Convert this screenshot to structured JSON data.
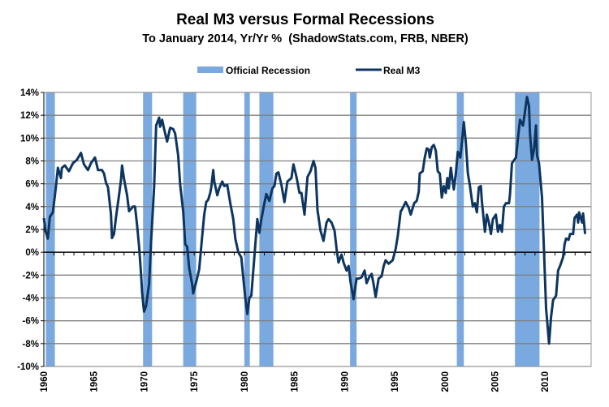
{
  "chart_data": {
    "type": "line",
    "title": "Real M3 versus Formal Recessions",
    "subtitle": "To January 2014, Yr/Yr %  (ShadowStats.com, FRB, NBER)",
    "xlabel": "",
    "ylabel": "",
    "xlim": [
      1960,
      2014.6
    ],
    "ylim": [
      -10,
      14
    ],
    "grid": true,
    "legend_position": "top-center",
    "legend": [
      "Official Recession",
      "Real M3"
    ],
    "y_ticks": [
      14,
      12,
      10,
      8,
      6,
      4,
      2,
      0,
      -2,
      -4,
      -6,
      -8,
      -10
    ],
    "y_tick_labels": [
      "14%",
      "12%",
      "10%",
      "8%",
      "6%",
      "4%",
      "2%",
      "0%",
      "-2%",
      "-4%",
      "-6%",
      "-8%",
      "-10%"
    ],
    "x_ticks": [
      1960,
      1965,
      1970,
      1975,
      1980,
      1985,
      1990,
      1995,
      2000,
      2005,
      2010
    ],
    "x_tick_labels": [
      "1960",
      "1965",
      "1970",
      "1975",
      "1980",
      "1985",
      "1990",
      "1995",
      "2000",
      "2005",
      "2010"
    ],
    "colors": {
      "recession": "#7aa9e0",
      "line": "#0d3560",
      "grid": "#808080"
    },
    "recessions": [
      [
        1960.2,
        1961.1
      ],
      [
        1969.9,
        1970.8
      ],
      [
        1973.9,
        1975.2
      ],
      [
        1980.0,
        1980.55
      ],
      [
        1981.5,
        1982.9
      ],
      [
        1990.55,
        1991.2
      ],
      [
        2001.2,
        2001.9
      ],
      [
        2007.0,
        2009.45
      ]
    ],
    "series": [
      {
        "name": "Real M3",
        "points": [
          [
            1960.0,
            3.0
          ],
          [
            1960.16,
            1.9
          ],
          [
            1960.4,
            1.2
          ],
          [
            1960.6,
            3.1
          ],
          [
            1960.9,
            3.5
          ],
          [
            1961.2,
            5.7
          ],
          [
            1961.4,
            7.4
          ],
          [
            1961.7,
            6.5
          ],
          [
            1961.8,
            7.4
          ],
          [
            1962.1,
            7.6
          ],
          [
            1962.5,
            7.1
          ],
          [
            1962.9,
            7.8
          ],
          [
            1963.3,
            8.1
          ],
          [
            1963.7,
            8.7
          ],
          [
            1964.0,
            7.7
          ],
          [
            1964.4,
            7.2
          ],
          [
            1964.7,
            7.8
          ],
          [
            1965.1,
            8.3
          ],
          [
            1965.4,
            7.2
          ],
          [
            1965.8,
            7.2
          ],
          [
            1966.0,
            6.9
          ],
          [
            1966.2,
            6.1
          ],
          [
            1966.4,
            5.7
          ],
          [
            1966.7,
            3.3
          ],
          [
            1966.8,
            1.25
          ],
          [
            1967.0,
            1.6
          ],
          [
            1967.2,
            3.1
          ],
          [
            1967.5,
            5.0
          ],
          [
            1967.7,
            6.4
          ],
          [
            1967.8,
            7.6
          ],
          [
            1968.0,
            6.4
          ],
          [
            1968.3,
            5.0
          ],
          [
            1968.5,
            3.6
          ],
          [
            1968.9,
            4.0
          ],
          [
            1969.1,
            4.0
          ],
          [
            1969.3,
            2.4
          ],
          [
            1969.5,
            0.5
          ],
          [
            1969.7,
            -1.9
          ],
          [
            1969.8,
            -3.5
          ],
          [
            1970.0,
            -5.2
          ],
          [
            1970.2,
            -4.7
          ],
          [
            1970.5,
            -2.8
          ],
          [
            1970.7,
            1.0
          ],
          [
            1971.0,
            5.7
          ],
          [
            1971.2,
            11.1
          ],
          [
            1971.5,
            11.8
          ],
          [
            1971.6,
            11.0
          ],
          [
            1971.8,
            11.6
          ],
          [
            1972.0,
            10.8
          ],
          [
            1972.3,
            9.7
          ],
          [
            1972.6,
            10.9
          ],
          [
            1972.9,
            10.8
          ],
          [
            1973.1,
            10.4
          ],
          [
            1973.4,
            8.5
          ],
          [
            1973.6,
            5.9
          ],
          [
            1973.9,
            3.6
          ],
          [
            1974.1,
            0.7
          ],
          [
            1974.3,
            0.5
          ],
          [
            1974.5,
            -1.4
          ],
          [
            1974.8,
            -2.8
          ],
          [
            1974.9,
            -3.6
          ],
          [
            1975.2,
            -2.6
          ],
          [
            1975.5,
            -1.5
          ],
          [
            1975.8,
            1.4
          ],
          [
            1976.0,
            3.3
          ],
          [
            1976.2,
            4.4
          ],
          [
            1976.4,
            4.6
          ],
          [
            1976.6,
            5.2
          ],
          [
            1976.7,
            5.7
          ],
          [
            1976.9,
            7.2
          ],
          [
            1977.0,
            6.2
          ],
          [
            1977.3,
            5.0
          ],
          [
            1977.5,
            5.6
          ],
          [
            1977.8,
            6.2
          ],
          [
            1978.0,
            5.8
          ],
          [
            1978.3,
            5.9
          ],
          [
            1978.6,
            4.3
          ],
          [
            1978.9,
            2.9
          ],
          [
            1979.1,
            1.2
          ],
          [
            1979.4,
            0.0
          ],
          [
            1979.7,
            -0.45
          ],
          [
            1979.9,
            -2.3
          ],
          [
            1980.1,
            -4.0
          ],
          [
            1980.3,
            -5.4
          ],
          [
            1980.5,
            -4.0
          ],
          [
            1980.7,
            -3.8
          ],
          [
            1981.0,
            -0.45
          ],
          [
            1981.3,
            2.9
          ],
          [
            1981.5,
            1.7
          ],
          [
            1981.7,
            2.9
          ],
          [
            1982.0,
            4.3
          ],
          [
            1982.2,
            5.1
          ],
          [
            1982.5,
            4.5
          ],
          [
            1982.8,
            5.6
          ],
          [
            1983.0,
            5.8
          ],
          [
            1983.2,
            6.9
          ],
          [
            1983.4,
            7.0
          ],
          [
            1983.7,
            5.9
          ],
          [
            1984.0,
            4.4
          ],
          [
            1984.3,
            6.2
          ],
          [
            1984.7,
            6.5
          ],
          [
            1984.9,
            7.7
          ],
          [
            1985.2,
            6.6
          ],
          [
            1985.5,
            5.2
          ],
          [
            1985.7,
            5.2
          ],
          [
            1986.0,
            3.3
          ],
          [
            1986.3,
            6.6
          ],
          [
            1986.6,
            7.1
          ],
          [
            1986.9,
            8.0
          ],
          [
            1987.1,
            7.4
          ],
          [
            1987.3,
            3.7
          ],
          [
            1987.6,
            1.9
          ],
          [
            1987.9,
            1.0
          ],
          [
            1988.2,
            2.6
          ],
          [
            1988.4,
            2.9
          ],
          [
            1988.7,
            2.6
          ],
          [
            1989.0,
            1.9
          ],
          [
            1989.2,
            0.3
          ],
          [
            1989.4,
            -0.9
          ],
          [
            1989.7,
            -0.2
          ],
          [
            1989.9,
            -0.9
          ],
          [
            1990.2,
            -1.6
          ],
          [
            1990.4,
            -1.2
          ],
          [
            1990.6,
            -2.6
          ],
          [
            1990.9,
            -4.1
          ],
          [
            1991.2,
            -2.3
          ],
          [
            1991.4,
            -2.3
          ],
          [
            1991.7,
            -2.2
          ],
          [
            1992.0,
            -1.6
          ],
          [
            1992.2,
            -2.7
          ],
          [
            1992.5,
            -2.1
          ],
          [
            1992.7,
            -1.9
          ],
          [
            1992.9,
            -2.8
          ],
          [
            1993.1,
            -3.9
          ],
          [
            1993.4,
            -2.3
          ],
          [
            1993.7,
            -2.1
          ],
          [
            1993.9,
            -1.2
          ],
          [
            1994.1,
            -0.7
          ],
          [
            1994.4,
            -1.0
          ],
          [
            1994.8,
            -0.7
          ],
          [
            1995.1,
            0.3
          ],
          [
            1995.3,
            1.4
          ],
          [
            1995.6,
            3.6
          ],
          [
            1995.7,
            3.7
          ],
          [
            1996.1,
            4.4
          ],
          [
            1996.4,
            3.9
          ],
          [
            1996.6,
            3.3
          ],
          [
            1996.95,
            4.3
          ],
          [
            1997.2,
            4.5
          ],
          [
            1997.4,
            5.3
          ],
          [
            1997.5,
            6.9
          ],
          [
            1997.8,
            7.1
          ],
          [
            1998.0,
            8.3
          ],
          [
            1998.2,
            9.1
          ],
          [
            1998.4,
            9.0
          ],
          [
            1998.5,
            8.3
          ],
          [
            1998.7,
            9.2
          ],
          [
            1998.9,
            9.4
          ],
          [
            1999.1,
            8.9
          ],
          [
            1999.3,
            7.1
          ],
          [
            1999.5,
            6.9
          ],
          [
            1999.7,
            4.8
          ],
          [
            1999.9,
            5.8
          ],
          [
            2000.1,
            5.2
          ],
          [
            2000.25,
            6.5
          ],
          [
            2000.4,
            5.6
          ],
          [
            2000.6,
            7.4
          ],
          [
            2000.9,
            5.5
          ],
          [
            2001.1,
            6.9
          ],
          [
            2001.3,
            8.8
          ],
          [
            2001.55,
            8.3
          ],
          [
            2001.7,
            9.6
          ],
          [
            2001.9,
            11.4
          ],
          [
            2002.1,
            9.6
          ],
          [
            2002.3,
            6.9
          ],
          [
            2002.5,
            5.9
          ],
          [
            2002.6,
            5.2
          ],
          [
            2002.8,
            4.0
          ],
          [
            2003.0,
            4.3
          ],
          [
            2003.2,
            3.5
          ],
          [
            2003.4,
            5.7
          ],
          [
            2003.6,
            5.8
          ],
          [
            2003.7,
            4.5
          ],
          [
            2004.0,
            1.8
          ],
          [
            2004.2,
            3.3
          ],
          [
            2004.4,
            2.6
          ],
          [
            2004.6,
            1.6
          ],
          [
            2004.8,
            2.9
          ],
          [
            2005.1,
            3.3
          ],
          [
            2005.3,
            1.8
          ],
          [
            2005.5,
            2.4
          ],
          [
            2005.7,
            1.8
          ],
          [
            2005.9,
            4.0
          ],
          [
            2006.1,
            4.3
          ],
          [
            2006.4,
            4.3
          ],
          [
            2006.5,
            5.0
          ],
          [
            2006.7,
            7.8
          ],
          [
            2007.1,
            8.3
          ],
          [
            2007.3,
            10.0
          ],
          [
            2007.5,
            11.6
          ],
          [
            2007.8,
            11.1
          ],
          [
            2008.0,
            12.3
          ],
          [
            2008.2,
            13.6
          ],
          [
            2008.4,
            12.8
          ],
          [
            2008.5,
            10.4
          ],
          [
            2008.7,
            8.1
          ],
          [
            2008.9,
            9.0
          ],
          [
            2009.1,
            11.1
          ],
          [
            2009.2,
            8.5
          ],
          [
            2009.4,
            7.8
          ],
          [
            2009.7,
            4.8
          ],
          [
            2009.9,
            0.0
          ],
          [
            2010.1,
            -4.9
          ],
          [
            2010.2,
            -5.9
          ],
          [
            2010.4,
            -8.0
          ],
          [
            2010.6,
            -5.7
          ],
          [
            2010.8,
            -4.2
          ],
          [
            2011.1,
            -3.8
          ],
          [
            2011.3,
            -1.6
          ],
          [
            2011.5,
            -1.2
          ],
          [
            2011.8,
            -0.45
          ],
          [
            2011.95,
            0.7
          ],
          [
            2012.1,
            1.2
          ],
          [
            2012.35,
            1.1
          ],
          [
            2012.5,
            1.6
          ],
          [
            2012.8,
            1.6
          ],
          [
            2012.95,
            3.0
          ],
          [
            2013.2,
            3.3
          ],
          [
            2013.3,
            2.6
          ],
          [
            2013.4,
            3.5
          ],
          [
            2013.7,
            2.6
          ],
          [
            2013.8,
            3.4
          ],
          [
            2014.0,
            1.6
          ]
        ]
      }
    ]
  }
}
